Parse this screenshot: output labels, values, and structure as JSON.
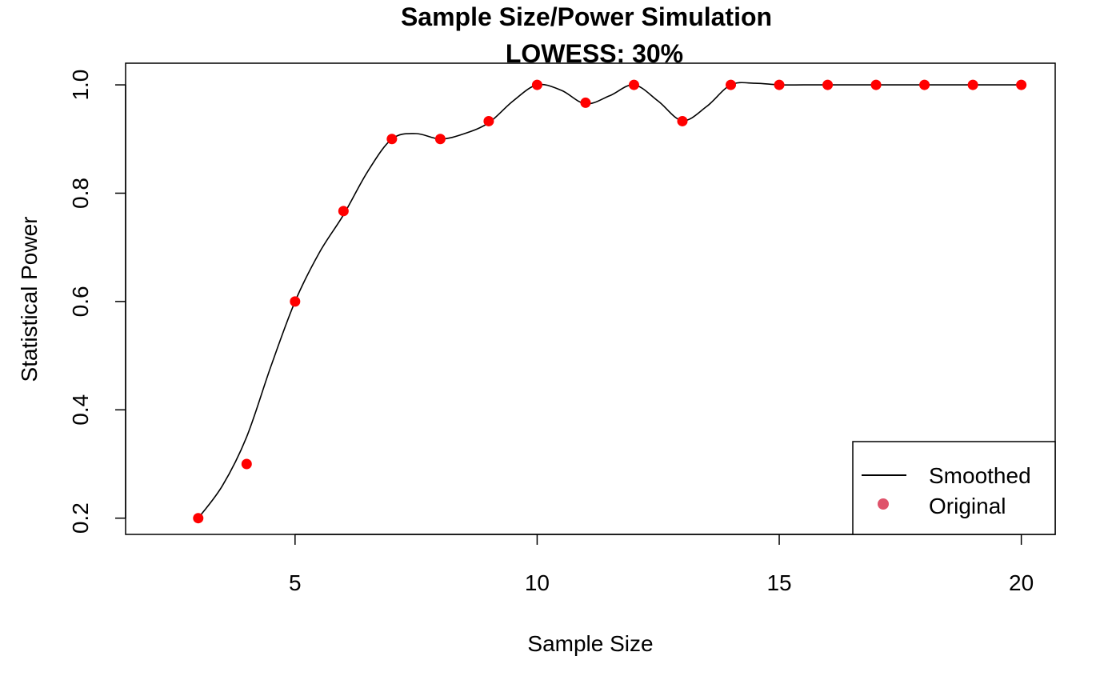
{
  "chart_data": {
    "type": "line",
    "title": "Sample Size/Power Simulation",
    "subtitle": "LOWESS: 30%",
    "xlabel": "Sample Size",
    "ylabel": "Statistical Power",
    "xlim": [
      1.5,
      20.7
    ],
    "ylim": [
      0.17,
      1.04
    ],
    "x_ticks": [
      5,
      10,
      15,
      20
    ],
    "y_ticks": [
      0.2,
      0.4,
      0.6,
      0.8,
      1.0
    ],
    "x_tick_labels": [
      "5",
      "10",
      "15",
      "20"
    ],
    "y_tick_labels": [
      "0.2",
      "0.4",
      "0.6",
      "0.8",
      "1.0"
    ],
    "grid": false,
    "legend": {
      "position": "bottom-right",
      "entries": [
        {
          "label": "Smoothed",
          "symbol": "line",
          "color": "#000000"
        },
        {
          "label": "Original",
          "symbol": "point",
          "color": "#DF536B"
        }
      ]
    },
    "series": [
      {
        "name": "Smoothed",
        "kind": "line",
        "color": "#000000",
        "x": [
          3,
          3.5,
          4,
          4.5,
          5,
          5.5,
          6,
          6.5,
          7,
          7.5,
          8,
          8.5,
          9,
          9.5,
          10,
          10.5,
          11,
          11.5,
          12,
          12.5,
          13,
          13.5,
          14,
          14.5,
          15,
          15.5,
          16,
          17,
          18,
          19,
          20
        ],
        "values": [
          0.2,
          0.26,
          0.35,
          0.48,
          0.6,
          0.69,
          0.76,
          0.84,
          0.9,
          0.91,
          0.9,
          0.91,
          0.93,
          0.97,
          1.0,
          0.99,
          0.965,
          0.98,
          1.0,
          0.97,
          0.934,
          0.96,
          1.0,
          1.003,
          1.0,
          1.0,
          1.0,
          1.0,
          1.0,
          1.0,
          1.0
        ]
      },
      {
        "name": "Original",
        "kind": "points",
        "color": "#FF0000",
        "x": [
          3,
          4,
          5,
          6,
          7,
          8,
          9,
          10,
          11,
          12,
          13,
          14,
          15,
          16,
          17,
          18,
          19,
          20
        ],
        "values": [
          0.2,
          0.3,
          0.6,
          0.767,
          0.9,
          0.9,
          0.933,
          1.0,
          0.967,
          1.0,
          0.933,
          1.0,
          1.0,
          1.0,
          1.0,
          1.0,
          1.0,
          1.0
        ]
      }
    ]
  }
}
